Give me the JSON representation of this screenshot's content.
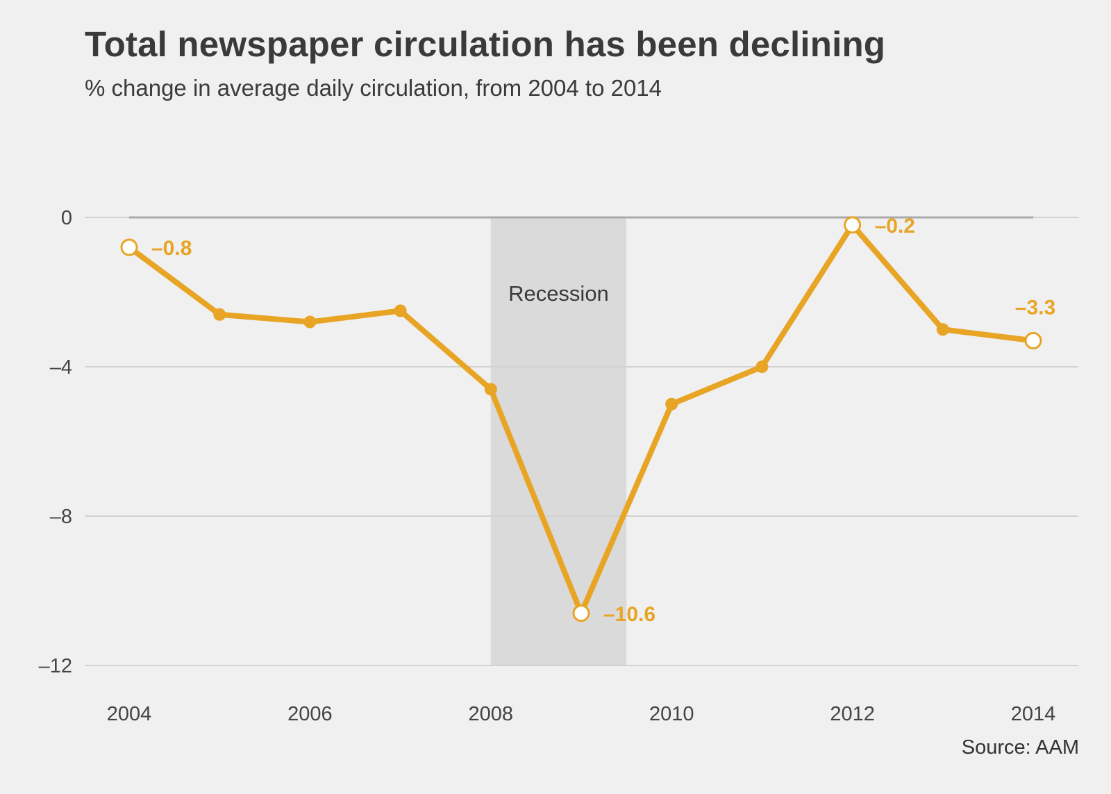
{
  "title": "Total newspaper circulation has been declining",
  "subtitle": "% change in average daily circulation, from 2004 to 2014",
  "source": "Source: AAM",
  "colors": {
    "line": "#e8a424",
    "grid": "#d2d2d2",
    "zero_line": "#aaaaaa",
    "recession_band": "#dadada",
    "background": "#f0f0f0"
  },
  "chart_data": {
    "type": "line",
    "title": "Total newspaper circulation has been declining",
    "subtitle": "% change in average daily circulation, from 2004 to 2014",
    "xlabel": "",
    "ylabel": "",
    "x": [
      2004,
      2005,
      2006,
      2007,
      2008,
      2009,
      2010,
      2011,
      2012,
      2013,
      2014
    ],
    "series": [
      {
        "values": [
          -0.8,
          -2.6,
          -2.8,
          -2.5,
          -4.6,
          -10.6,
          -5.0,
          -4.0,
          -0.2,
          -3.0,
          -3.3
        ]
      }
    ],
    "xlim": [
      2004,
      2014
    ],
    "ylim": [
      -12,
      0
    ],
    "x_ticks": [
      "2004",
      "2006",
      "2008",
      "2010",
      "2012",
      "2014"
    ],
    "y_ticks": [
      "0",
      "–4",
      "–8",
      "–12"
    ],
    "y_tick_values": [
      0,
      -4,
      -8,
      -12
    ],
    "x_tick_values": [
      2004,
      2006,
      2008,
      2010,
      2012,
      2014
    ],
    "grid": true,
    "legend": "none",
    "data_labels": [
      {
        "x": 2004,
        "text": "–0.8"
      },
      {
        "x": 2009,
        "text": "–10.6"
      },
      {
        "x": 2012,
        "text": "–0.2"
      },
      {
        "x": 2014,
        "text": "–3.3"
      }
    ],
    "recession": {
      "label": "Recession",
      "start": 2008,
      "end": 2009.5
    }
  }
}
